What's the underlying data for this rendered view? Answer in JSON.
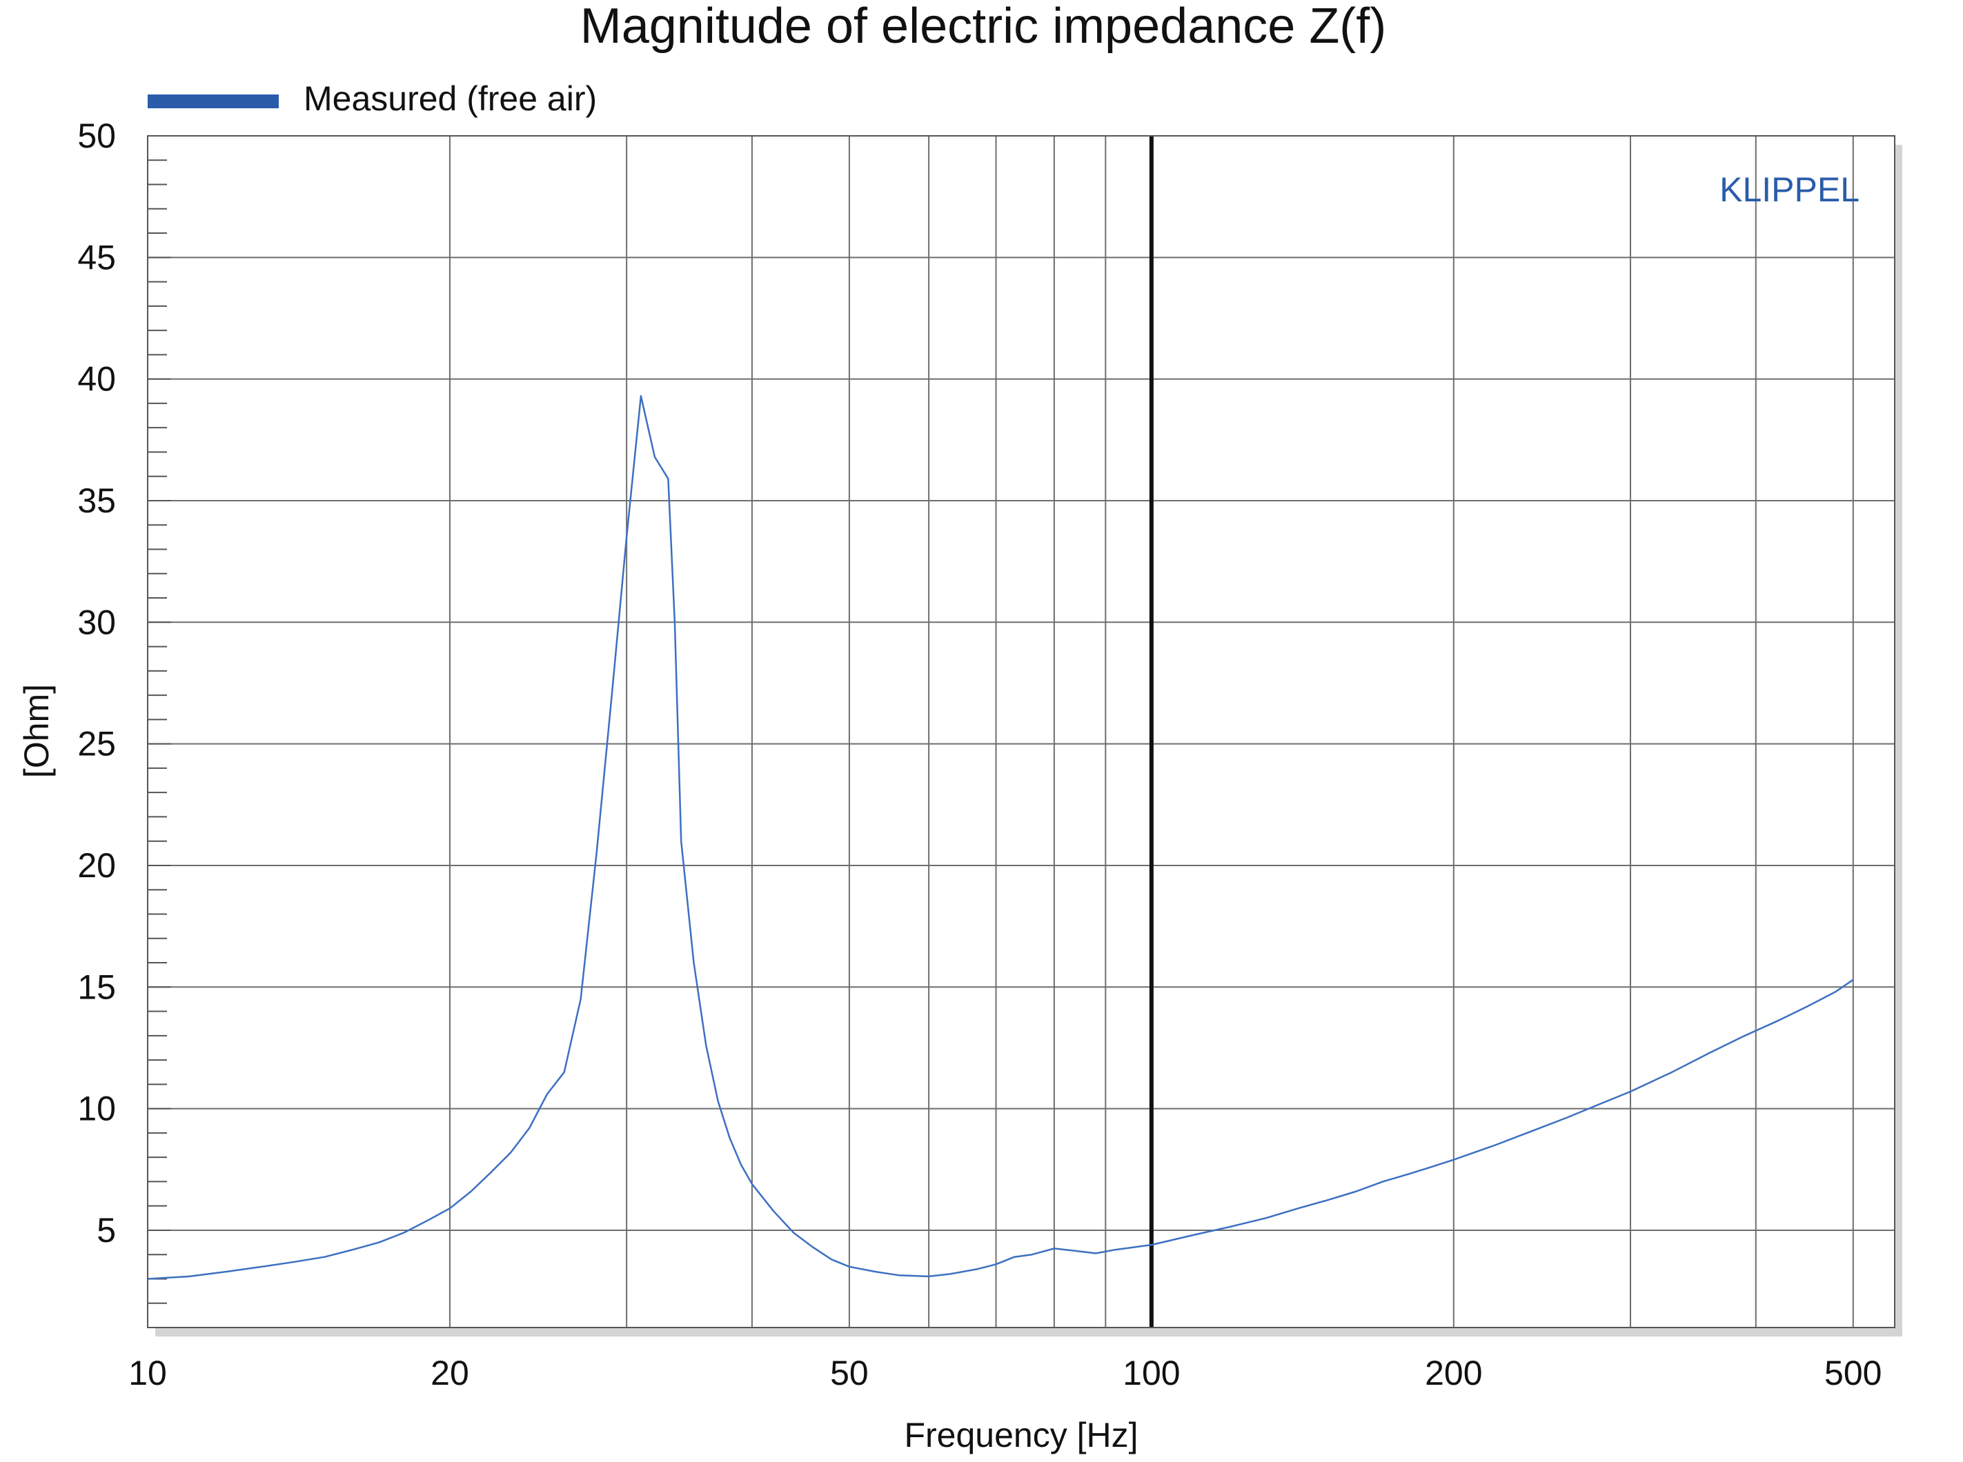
{
  "chart_data": {
    "type": "line",
    "title": "Magnitude of electric impedance Z(f)",
    "xlabel": "Frequency [Hz]",
    "ylabel": "[Ohm]",
    "xscale": "log",
    "xlim": [
      10,
      550
    ],
    "ylim": [
      1,
      50
    ],
    "x_ticks": [
      10,
      20,
      50,
      100,
      200,
      500
    ],
    "x_tick_labels": [
      "10",
      "20",
      "50",
      "100",
      "200",
      "500"
    ],
    "x_minor_gridlines": [
      30,
      40,
      60,
      70,
      80,
      90,
      300,
      400
    ],
    "y_ticks": [
      5,
      10,
      15,
      20,
      25,
      30,
      35,
      40,
      45,
      50
    ],
    "y_tick_labels": [
      "5",
      "10",
      "15",
      "20",
      "25",
      "30",
      "35",
      "40",
      "45",
      "50"
    ],
    "grid": true,
    "legend_position": "top-left",
    "watermark": "KLIPPEL",
    "colors": {
      "series": "#3d6fc2",
      "legend_swatch": "#2a5caa",
      "watermark": "#2a5caa",
      "grid": "#6e6e6e",
      "marker_line": "#111111"
    },
    "vertical_marker": 100,
    "series": [
      {
        "name": "Measured (free air)",
        "x": [
          10,
          11,
          12,
          13,
          14,
          15,
          16,
          17,
          18,
          19,
          20,
          21,
          22,
          23,
          24,
          25,
          26,
          27,
          28,
          29,
          30,
          31,
          32,
          33,
          33.5,
          34,
          35,
          36,
          37,
          38,
          39,
          40,
          42,
          44,
          46,
          48,
          50,
          53,
          56,
          60,
          63,
          67,
          70,
          73,
          76,
          80,
          84,
          88,
          92,
          96,
          100,
          110,
          120,
          130,
          140,
          150,
          160,
          170,
          180,
          190,
          200,
          220,
          240,
          260,
          280,
          300,
          330,
          360,
          390,
          420,
          450,
          480,
          500
        ],
        "y": [
          3.0,
          3.1,
          3.3,
          3.5,
          3.7,
          3.9,
          4.2,
          4.5,
          4.9,
          5.4,
          5.9,
          6.6,
          7.4,
          8.2,
          9.2,
          10.6,
          11.5,
          14.5,
          20.5,
          27.0,
          33.5,
          39.3,
          36.8,
          35.9,
          30.0,
          21.0,
          16.0,
          12.6,
          10.3,
          8.8,
          7.7,
          6.9,
          5.8,
          4.9,
          4.3,
          3.8,
          3.5,
          3.3,
          3.15,
          3.1,
          3.2,
          3.4,
          3.6,
          3.9,
          4.0,
          4.25,
          4.15,
          4.05,
          4.2,
          4.3,
          4.4,
          4.8,
          5.15,
          5.5,
          5.9,
          6.25,
          6.6,
          7.0,
          7.3,
          7.6,
          7.9,
          8.5,
          9.1,
          9.65,
          10.2,
          10.7,
          11.5,
          12.3,
          13.0,
          13.6,
          14.2,
          14.8,
          15.3
        ]
      }
    ]
  }
}
